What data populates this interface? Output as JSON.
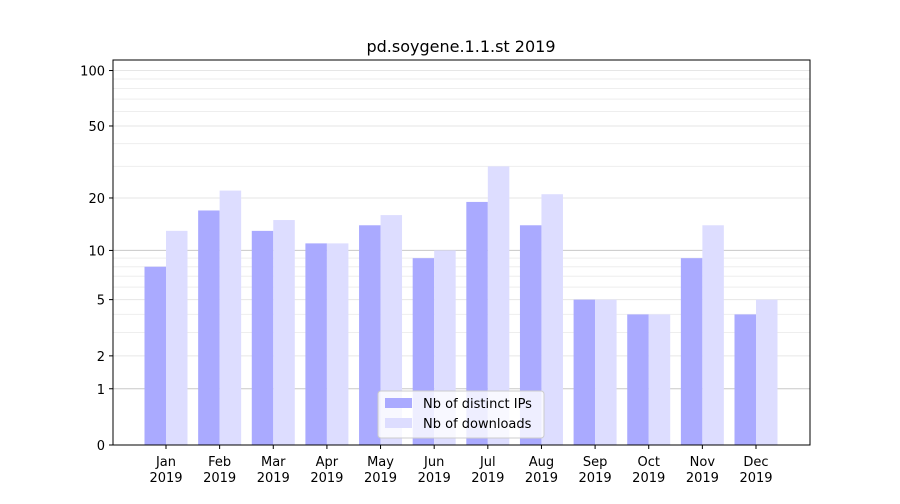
{
  "chart_data": {
    "type": "bar",
    "title": "pd.soygene.1.1.st 2019",
    "xlabel": "",
    "ylabel": "",
    "yscale": "log(1+x)",
    "ylim": [
      0,
      114
    ],
    "yticks": [
      0,
      1,
      2,
      5,
      10,
      20,
      50,
      100
    ],
    "ytick_labels": [
      "0",
      "1",
      "2",
      "5",
      "10",
      "20",
      "50",
      "100"
    ],
    "grid": true,
    "legend_position": "bottom-center",
    "categories": [
      "Jan\n2019",
      "Feb\n2019",
      "Mar\n2019",
      "Apr\n2019",
      "May\n2019",
      "Jun\n2019",
      "Jul\n2019",
      "Aug\n2019",
      "Sep\n2019",
      "Oct\n2019",
      "Nov\n2019",
      "Dec\n2019"
    ],
    "series": [
      {
        "name": "Nb of distinct IPs",
        "color": "#aaaaff",
        "values": [
          8,
          17,
          13,
          11,
          14,
          9,
          19,
          14,
          5,
          4,
          9,
          4
        ]
      },
      {
        "name": "Nb of downloads",
        "color": "#ddddff",
        "values": [
          13,
          22,
          15,
          11,
          16,
          10,
          30,
          21,
          5,
          4,
          14,
          5
        ]
      }
    ]
  }
}
